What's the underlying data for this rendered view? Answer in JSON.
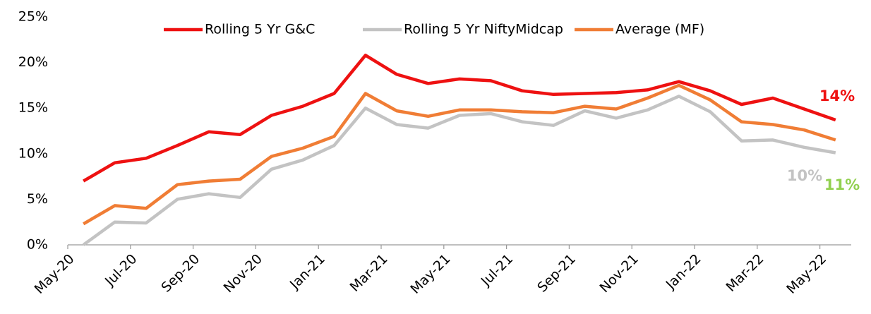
{
  "chart_data": {
    "type": "line",
    "categories": [
      "May-20",
      null,
      "Jul-20",
      null,
      "Sep-20",
      null,
      "Nov-20",
      null,
      "Jan-21",
      null,
      "Mar-21",
      null,
      "May-21",
      null,
      "Jul-21",
      null,
      "Sep-21",
      null,
      "Nov-21",
      null,
      "Jan-22",
      null,
      "Mar-22",
      null,
      "May-22"
    ],
    "series": [
      {
        "name": "Rolling 5 Yr G&C",
        "color": "#ee1111",
        "values": [
          7.0,
          9.0,
          9.5,
          10.9,
          12.4,
          12.1,
          14.2,
          15.2,
          16.6,
          20.8,
          18.7,
          17.7,
          18.2,
          18.0,
          16.9,
          16.5,
          16.6,
          16.7,
          17.0,
          17.9,
          16.9,
          15.4,
          16.1,
          14.9,
          13.7
        ]
      },
      {
        "name": "Rolling 5 Yr NiftyMidcap",
        "color": "#c3c3c3",
        "values": [
          0,
          2.5,
          2.4,
          5.0,
          5.6,
          5.2,
          8.3,
          9.3,
          10.9,
          15.0,
          13.2,
          12.8,
          14.2,
          14.4,
          13.5,
          13.1,
          14.7,
          13.9,
          14.8,
          16.3,
          14.6,
          11.4,
          11.5,
          10.7,
          10.1
        ]
      },
      {
        "name": "Average (MF)",
        "color": "#f07d35",
        "values": [
          2.3,
          4.3,
          4.0,
          6.6,
          7.0,
          7.2,
          9.7,
          10.6,
          11.9,
          16.6,
          14.7,
          14.1,
          14.8,
          14.8,
          14.6,
          14.5,
          15.2,
          14.9,
          16.1,
          17.5,
          15.9,
          13.5,
          13.2,
          12.6,
          11.5
        ]
      }
    ],
    "ylim": [
      0,
      25
    ],
    "yticks": [
      {
        "value": 0,
        "label": "0%"
      },
      {
        "value": 5,
        "label": "5%"
      },
      {
        "value": 10,
        "label": "10%"
      },
      {
        "value": 15,
        "label": "15%"
      },
      {
        "value": 20,
        "label": "20%"
      },
      {
        "value": 25,
        "label": "25%"
      }
    ],
    "legend": "top",
    "annotations": [
      {
        "text": "14%",
        "color": "#ee1111"
      },
      {
        "text": "10%",
        "color": "#c3c3c3"
      },
      {
        "text": "11%",
        "color": "#92d050"
      }
    ]
  }
}
